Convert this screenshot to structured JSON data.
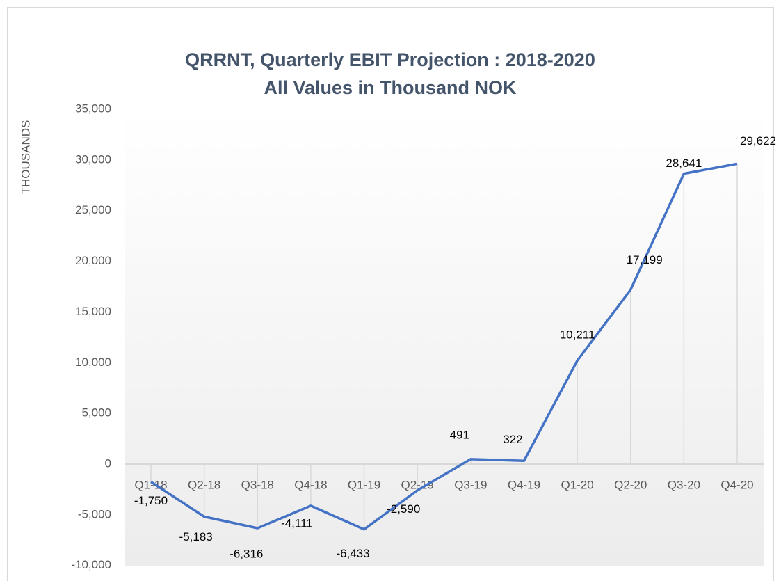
{
  "chart_data": {
    "type": "line",
    "title": [
      "QRRNT, Quarterly EBIT Projection : 2018-2020",
      "All Values in Thousand NOK"
    ],
    "y_label": "THOUSANDS",
    "categories": [
      "Q1-18",
      "Q2-18",
      "Q3-18",
      "Q4-18",
      "Q1-19",
      "Q2-19",
      "Q3-19",
      "Q4-19",
      "Q1-20",
      "Q2-20",
      "Q3-20",
      "Q4-20"
    ],
    "series": [
      {
        "color": "#4472c4",
        "values": [
          -1750,
          -5183,
          -6316,
          -4111,
          -6433,
          -2590,
          491,
          322,
          10211,
          17199,
          28641,
          29622
        ],
        "value_labels": [
          "-1,750",
          "-5,183",
          "-6,316",
          "-4,111",
          "-6,433",
          "-2,590",
          "491",
          "322",
          "10,211",
          "17,199",
          "28,641",
          "29,622"
        ]
      }
    ],
    "ylim": [
      -10000,
      35000
    ],
    "yticks": [
      {
        "value": -10000,
        "label": "-10,000"
      },
      {
        "value": -5000,
        "label": "-5,000"
      },
      0,
      {
        "value": 5000,
        "label": "5,000"
      },
      {
        "value": 10000,
        "label": "10,000"
      },
      {
        "value": 15000,
        "label": "15,000"
      },
      {
        "value": 20000,
        "label": "20,000"
      },
      {
        "value": 25000,
        "label": "25,000"
      },
      {
        "value": 30000,
        "label": "30,000"
      },
      {
        "value": 35000,
        "label": "35,000"
      }
    ],
    "drop_lines": true
  }
}
